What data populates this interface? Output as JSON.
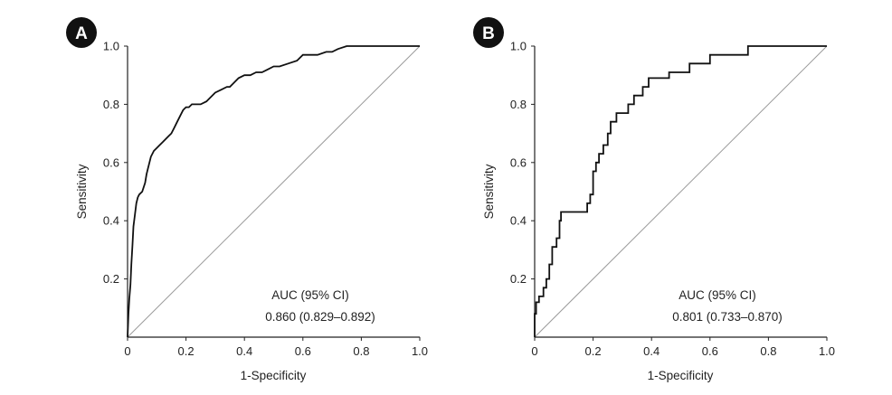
{
  "colors": {
    "axis": "#222222",
    "curve": "#111111",
    "diagonal": "#9a9a9a",
    "badge": "#111111",
    "badge_text": "#ffffff"
  },
  "chart_data": [
    {
      "panel_label": "A",
      "type": "line",
      "xlabel": "1-Specificity",
      "ylabel": "Sensitivity",
      "xlim": [
        0,
        1
      ],
      "ylim": [
        0,
        1
      ],
      "xticks": [
        "0",
        "0.2",
        "0.4",
        "0.6",
        "0.8",
        "1.0"
      ],
      "yticks": [
        "0.2",
        "0.4",
        "0.6",
        "0.8",
        "1.0"
      ],
      "grid": false,
      "annotation": [
        "AUC (95% CI)",
        "0.860 (0.829–0.892)"
      ],
      "series": [
        {
          "type": "roc",
          "x": [
            0,
            0.003,
            0.006,
            0.01,
            0.013,
            0.017,
            0.02,
            0.025,
            0.03,
            0.035,
            0.04,
            0.05,
            0.06,
            0.065,
            0.07,
            0.075,
            0.08,
            0.09,
            0.1,
            0.11,
            0.12,
            0.13,
            0.14,
            0.15,
            0.16,
            0.17,
            0.18,
            0.19,
            0.2,
            0.21,
            0.22,
            0.23,
            0.25,
            0.27,
            0.28,
            0.3,
            0.32,
            0.34,
            0.35,
            0.36,
            0.38,
            0.4,
            0.42,
            0.44,
            0.46,
            0.48,
            0.5,
            0.52,
            0.55,
            0.58,
            0.6,
            0.65,
            0.68,
            0.7,
            0.72,
            0.75,
            1.0
          ],
          "y": [
            0,
            0.08,
            0.13,
            0.18,
            0.25,
            0.32,
            0.38,
            0.42,
            0.46,
            0.48,
            0.49,
            0.5,
            0.53,
            0.56,
            0.58,
            0.6,
            0.62,
            0.64,
            0.65,
            0.66,
            0.67,
            0.68,
            0.69,
            0.7,
            0.72,
            0.74,
            0.76,
            0.78,
            0.79,
            0.79,
            0.8,
            0.8,
            0.8,
            0.81,
            0.82,
            0.84,
            0.85,
            0.86,
            0.86,
            0.87,
            0.89,
            0.9,
            0.9,
            0.91,
            0.91,
            0.92,
            0.93,
            0.93,
            0.94,
            0.95,
            0.97,
            0.97,
            0.98,
            0.98,
            0.99,
            1.0,
            1.0
          ]
        }
      ]
    },
    {
      "panel_label": "B",
      "type": "line",
      "xlabel": "1-Specificity",
      "ylabel": "Sensitivity",
      "xlim": [
        0,
        1
      ],
      "ylim": [
        0,
        1
      ],
      "xticks": [
        "0",
        "0.2",
        "0.4",
        "0.6",
        "0.8",
        "1.0"
      ],
      "yticks": [
        "0.2",
        "0.4",
        "0.6",
        "0.8",
        "1.0"
      ],
      "grid": false,
      "annotation": [
        "AUC (95% CI)",
        "0.801 (0.733–0.870)"
      ],
      "series": [
        {
          "type": "roc",
          "x": [
            0,
            0,
            0.005,
            0.005,
            0.015,
            0.015,
            0.03,
            0.03,
            0.04,
            0.04,
            0.05,
            0.05,
            0.06,
            0.06,
            0.075,
            0.075,
            0.085,
            0.085,
            0.09,
            0.09,
            0.18,
            0.18,
            0.19,
            0.19,
            0.2,
            0.2,
            0.21,
            0.21,
            0.22,
            0.22,
            0.235,
            0.235,
            0.25,
            0.25,
            0.26,
            0.26,
            0.28,
            0.28,
            0.32,
            0.32,
            0.34,
            0.34,
            0.37,
            0.37,
            0.39,
            0.39,
            0.46,
            0.46,
            0.53,
            0.53,
            0.6,
            0.6,
            0.73,
            0.73,
            1.0
          ],
          "y": [
            0,
            0.08,
            0.08,
            0.12,
            0.12,
            0.14,
            0.14,
            0.17,
            0.17,
            0.2,
            0.2,
            0.25,
            0.25,
            0.31,
            0.31,
            0.34,
            0.34,
            0.4,
            0.4,
            0.43,
            0.43,
            0.46,
            0.46,
            0.49,
            0.49,
            0.57,
            0.57,
            0.6,
            0.6,
            0.63,
            0.63,
            0.66,
            0.66,
            0.7,
            0.7,
            0.74,
            0.74,
            0.77,
            0.77,
            0.8,
            0.8,
            0.83,
            0.83,
            0.86,
            0.86,
            0.89,
            0.89,
            0.91,
            0.91,
            0.94,
            0.94,
            0.97,
            0.97,
            1.0,
            1.0
          ]
        }
      ]
    }
  ]
}
